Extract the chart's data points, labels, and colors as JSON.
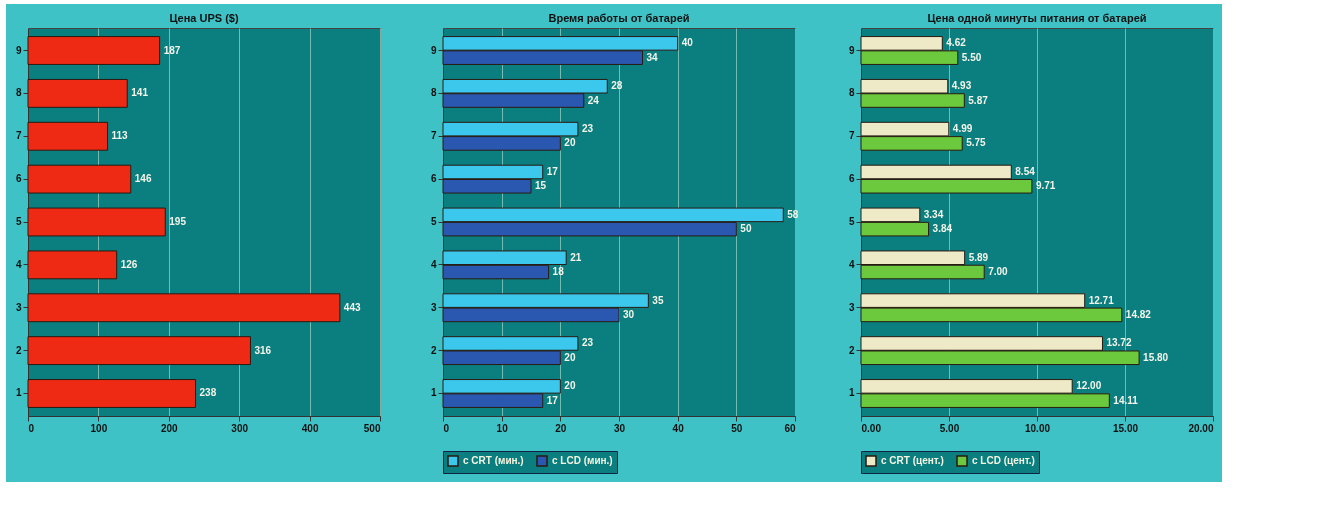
{
  "chart_data": [
    {
      "type": "bar",
      "orientation": "horizontal",
      "title": "Цена UPS ($)",
      "categories": [
        "9",
        "8",
        "7",
        "6",
        "5",
        "4",
        "3",
        "2",
        "1"
      ],
      "series": [
        {
          "color": "#ee2a14",
          "values": [
            187,
            141,
            113,
            146,
            195,
            126,
            443,
            316,
            238
          ]
        }
      ],
      "xlim": [
        0,
        500
      ],
      "xticks": [
        0,
        100,
        200,
        300,
        400,
        500
      ],
      "grid": "x",
      "data_labels": true,
      "legend": false
    },
    {
      "type": "bar",
      "orientation": "horizontal",
      "title": "Время работы от батарей",
      "categories": [
        "9",
        "8",
        "7",
        "6",
        "5",
        "4",
        "3",
        "2",
        "1"
      ],
      "series": [
        {
          "name": "с CRT (мин.)",
          "color": "#3cc8ec",
          "values": [
            40,
            28,
            23,
            17,
            58,
            21,
            35,
            23,
            20
          ]
        },
        {
          "name": "с LCD (мин.)",
          "color": "#2a58b0",
          "values": [
            34,
            24,
            20,
            15,
            50,
            18,
            30,
            20,
            17
          ]
        }
      ],
      "xlim": [
        0,
        60
      ],
      "xticks": [
        0,
        10,
        20,
        30,
        40,
        50,
        60
      ],
      "grid": "x",
      "data_labels": true,
      "legend": "bottom"
    },
    {
      "type": "bar",
      "orientation": "horizontal",
      "title": "Цена одной минуты питания от батарей",
      "categories": [
        "9",
        "8",
        "7",
        "6",
        "5",
        "4",
        "3",
        "2",
        "1"
      ],
      "series": [
        {
          "name": "с CRT (цент.)",
          "color": "#eeeac8",
          "values": [
            4.62,
            4.93,
            4.99,
            8.54,
            3.34,
            5.89,
            12.71,
            13.72,
            12.0
          ],
          "value_labels": [
            "4.62",
            "4.93",
            "4.99",
            "8.54",
            "3.34",
            "5.89",
            "12.71",
            "13.72",
            "12.00"
          ]
        },
        {
          "name": "с LCD (цент.)",
          "color": "#6cc83c",
          "values": [
            5.5,
            5.87,
            5.75,
            9.71,
            3.84,
            7.0,
            14.82,
            15.8,
            14.11
          ],
          "value_labels": [
            "5.50",
            "5.87",
            "5.75",
            "9.71",
            "3.84",
            "7.00",
            "14.82",
            "15.80",
            "14.11"
          ]
        }
      ],
      "xlim": [
        0,
        20
      ],
      "xticks": [
        {
          "value": 0,
          "label": "0.00"
        },
        {
          "value": 5,
          "label": "5.00"
        },
        {
          "value": 10,
          "label": "10.00"
        },
        {
          "value": 15,
          "label": "15.00"
        },
        {
          "value": 20,
          "label": "20.00"
        }
      ],
      "grid": "x",
      "legend": "bottom"
    }
  ]
}
